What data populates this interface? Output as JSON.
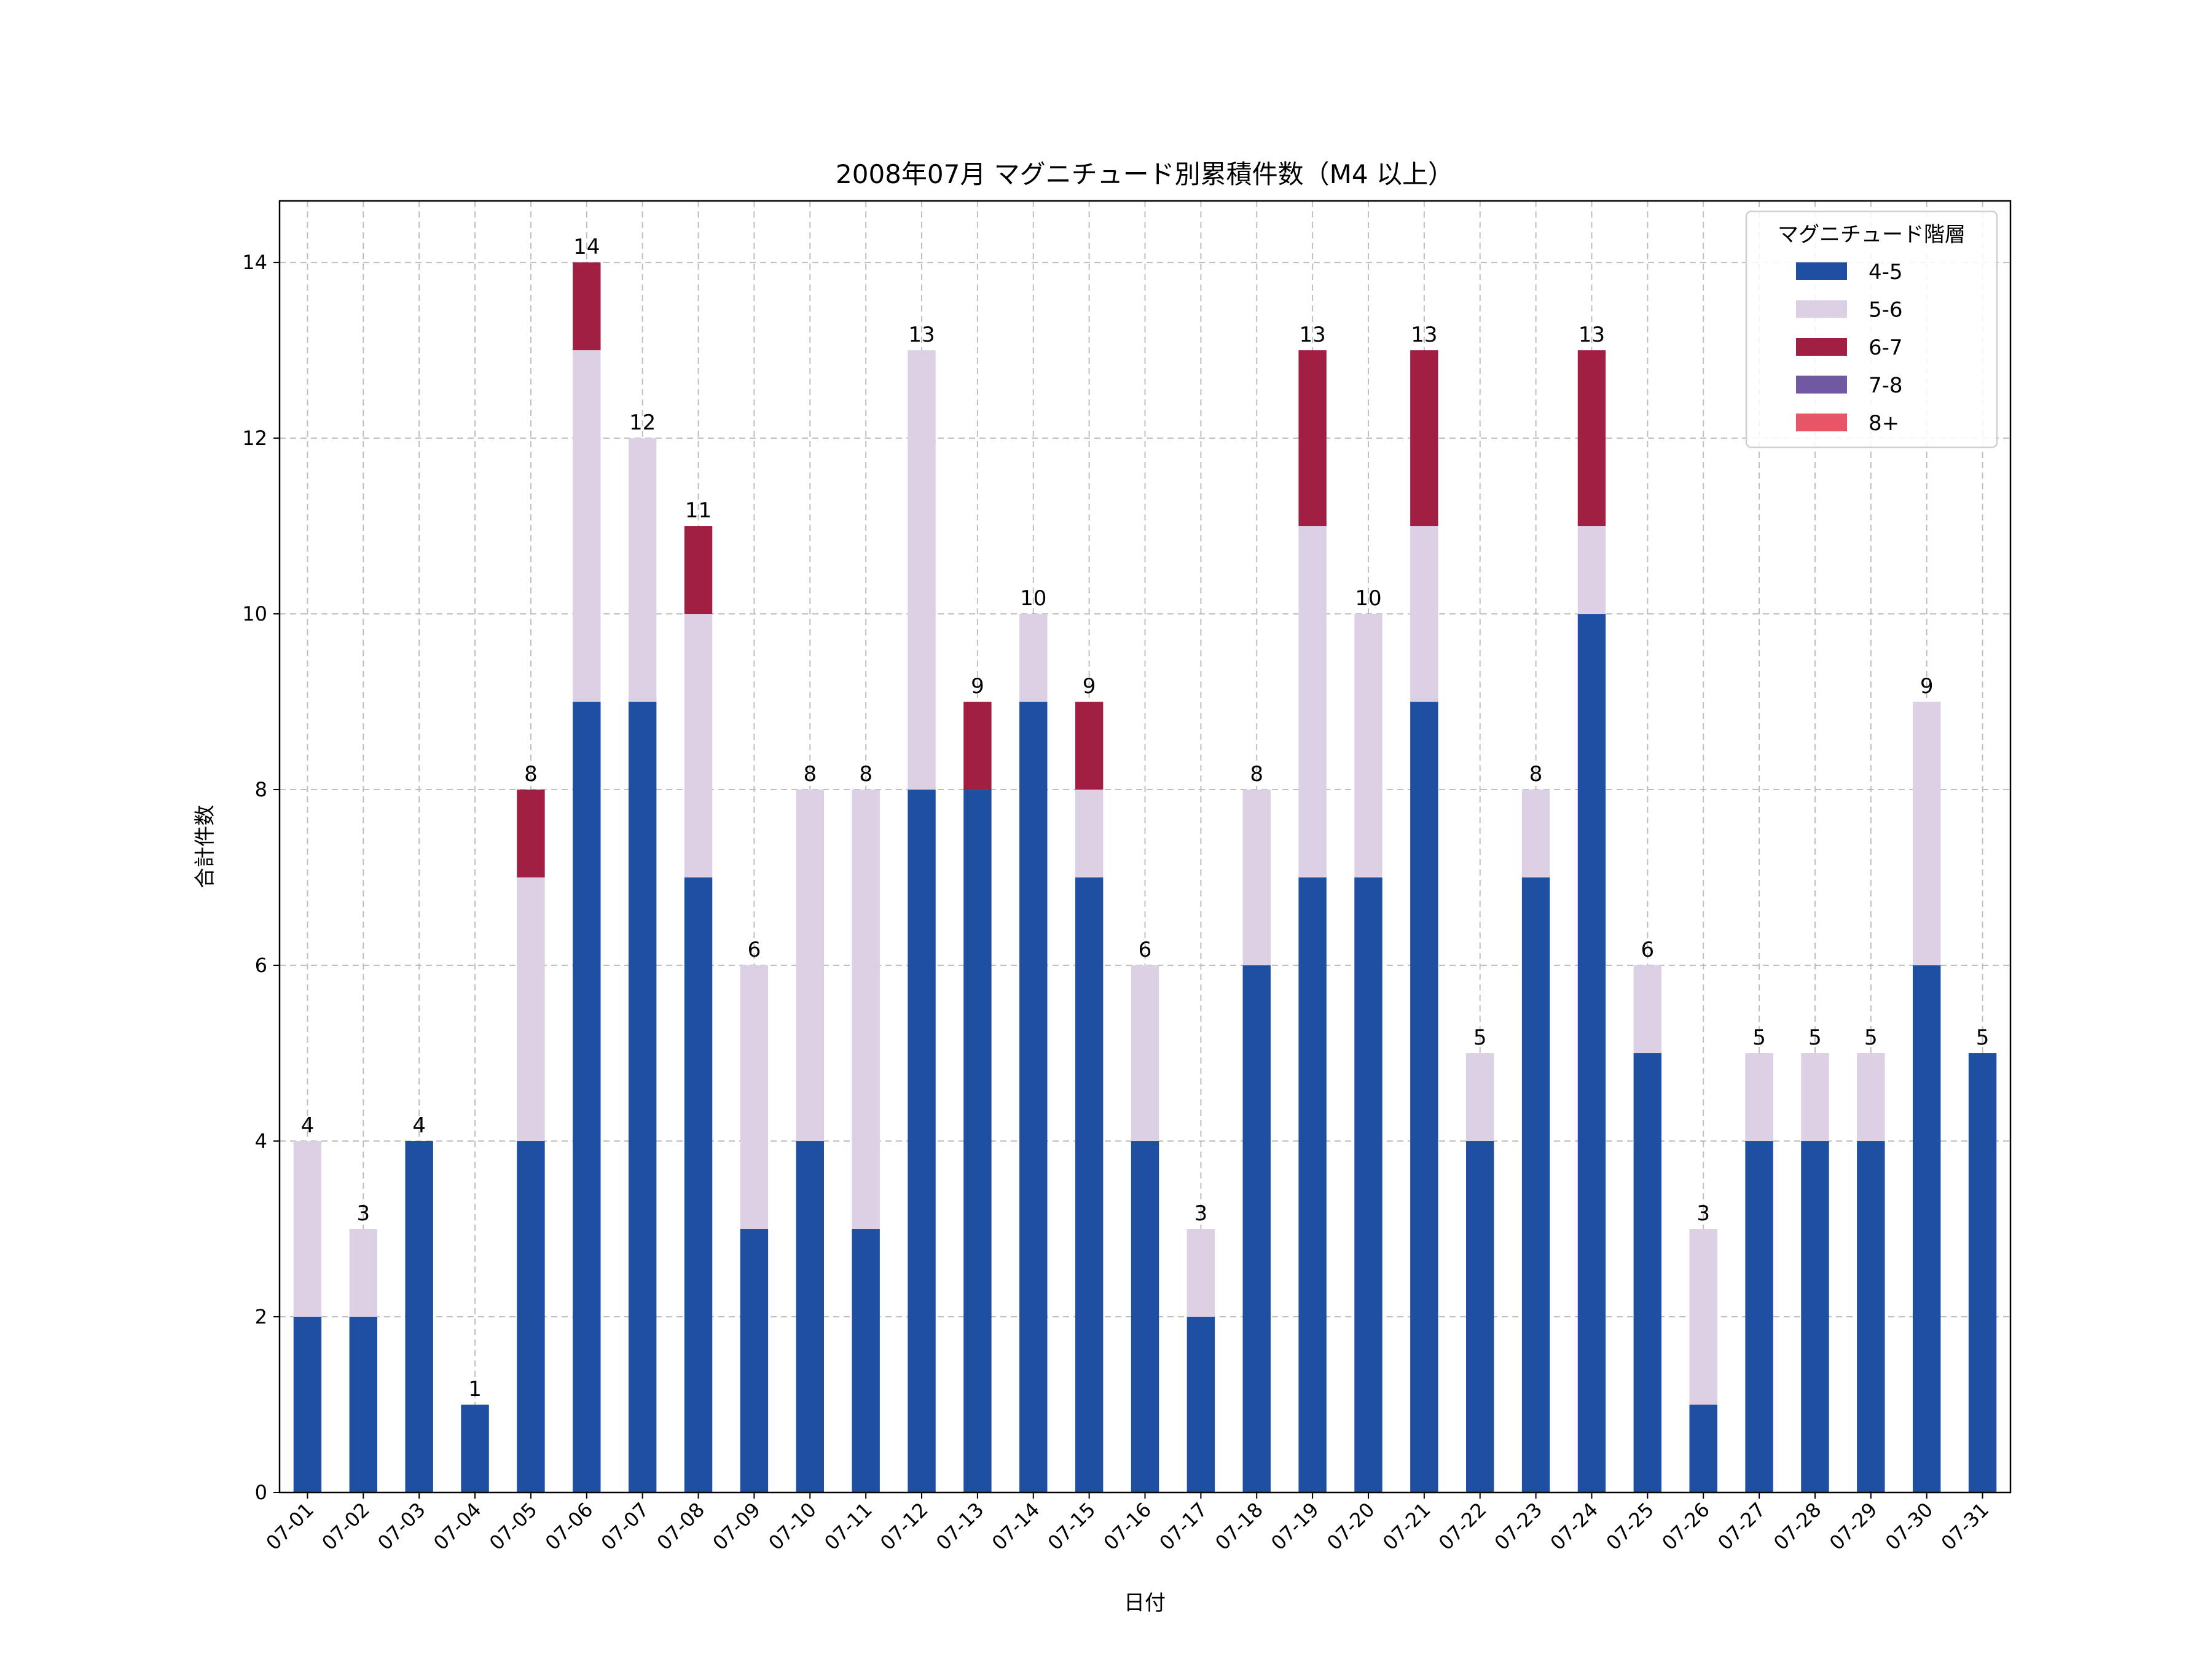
{
  "chart_data": {
    "type": "bar",
    "stacked": true,
    "title": "2008年07月 マグニチュード別累積件数（M4 以上）",
    "xlabel": "日付",
    "ylabel": "合計件数",
    "ylim": [
      0,
      14.7
    ],
    "yticks": [
      0,
      2,
      4,
      6,
      8,
      10,
      12,
      14
    ],
    "grid": true,
    "legend": {
      "title": "マグニチュード階層",
      "placement": "top-right"
    },
    "categories": [
      "07-01",
      "07-02",
      "07-03",
      "07-04",
      "07-05",
      "07-06",
      "07-07",
      "07-08",
      "07-09",
      "07-10",
      "07-11",
      "07-12",
      "07-13",
      "07-14",
      "07-15",
      "07-16",
      "07-17",
      "07-18",
      "07-19",
      "07-20",
      "07-21",
      "07-22",
      "07-23",
      "07-24",
      "07-25",
      "07-26",
      "07-27",
      "07-28",
      "07-29",
      "07-30",
      "07-31"
    ],
    "series": [
      {
        "name": "4-5",
        "color": "#1f4fa0",
        "values": [
          2,
          2,
          4,
          1,
          4,
          9,
          9,
          7,
          3,
          4,
          3,
          8,
          8,
          9,
          7,
          4,
          2,
          6,
          7,
          7,
          9,
          4,
          7,
          10,
          5,
          1,
          4,
          4,
          4,
          6,
          5
        ]
      },
      {
        "name": "5-6",
        "color": "#dcd0e5",
        "values": [
          2,
          1,
          0,
          0,
          3,
          4,
          3,
          3,
          3,
          4,
          5,
          5,
          0,
          1,
          1,
          2,
          1,
          2,
          4,
          3,
          2,
          1,
          1,
          1,
          1,
          2,
          1,
          1,
          1,
          3,
          0
        ]
      },
      {
        "name": "6-7",
        "color": "#a01f42",
        "values": [
          0,
          0,
          0,
          0,
          1,
          1,
          0,
          1,
          0,
          0,
          0,
          0,
          1,
          0,
          1,
          0,
          0,
          0,
          2,
          0,
          2,
          0,
          0,
          2,
          0,
          0,
          0,
          0,
          0,
          0,
          0
        ]
      },
      {
        "name": "7-8",
        "color": "#7058a3",
        "values": [
          0,
          0,
          0,
          0,
          0,
          0,
          0,
          0,
          0,
          0,
          0,
          0,
          0,
          0,
          0,
          0,
          0,
          0,
          0,
          0,
          0,
          0,
          0,
          0,
          0,
          0,
          0,
          0,
          0,
          0,
          0
        ]
      },
      {
        "name": "8+",
        "color": "#e85566",
        "values": [
          0,
          0,
          0,
          0,
          0,
          0,
          0,
          0,
          0,
          0,
          0,
          0,
          0,
          0,
          0,
          0,
          0,
          0,
          0,
          0,
          0,
          0,
          0,
          0,
          0,
          0,
          0,
          0,
          0,
          0,
          0
        ]
      }
    ],
    "totals": [
      4,
      3,
      4,
      1,
      8,
      14,
      12,
      11,
      6,
      8,
      8,
      13,
      9,
      10,
      9,
      6,
      3,
      8,
      13,
      10,
      13,
      5,
      8,
      13,
      6,
      3,
      5,
      5,
      5,
      9,
      5
    ]
  }
}
